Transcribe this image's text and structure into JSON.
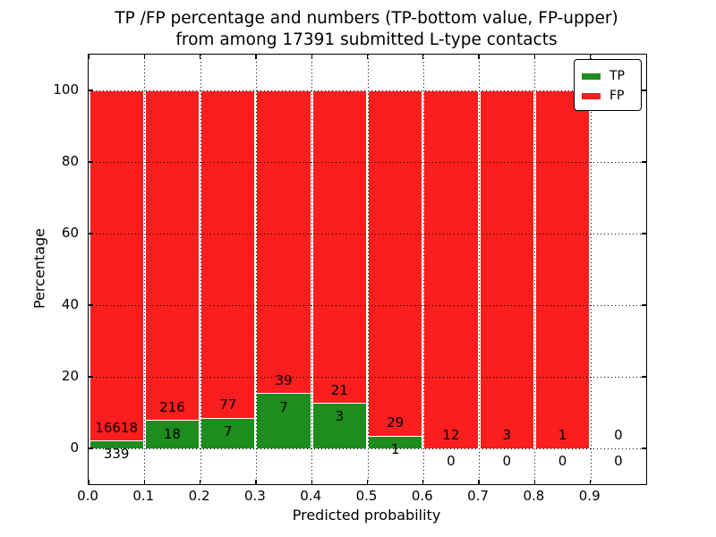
{
  "figure": {
    "title_line1": "TP /FP percentage and numbers (TP-bottom value, FP-upper)",
    "title_line2": "from among 17391 submitted L-type contacts"
  },
  "axes": {
    "xlabel": "Predicted probability",
    "ylabel": "Percentage",
    "xticks": [
      "0.0",
      "0.1",
      "0.2",
      "0.3",
      "0.4",
      "0.5",
      "0.6",
      "0.7",
      "0.8",
      "0.9"
    ],
    "yticks": [
      0,
      20,
      40,
      60,
      80,
      100
    ],
    "xlim": [
      0.0,
      1.0
    ],
    "ylim": [
      -10,
      110
    ],
    "grid_style": "dotted",
    "frame_color": "#000000"
  },
  "legend": {
    "position": "upper right",
    "entries": [
      {
        "label": "TP",
        "color": "#1e8c1e"
      },
      {
        "label": "FP",
        "color": "#fa1e1e"
      }
    ]
  },
  "chart_data": {
    "type": "bar",
    "mode": "stacked-100-percent",
    "title": "TP /FP percentage and numbers (TP-bottom value, FP-upper) from among 17391 submitted L-type contacts",
    "xlabel": "Predicted probability",
    "ylabel": "Percentage",
    "bin_width": 0.1,
    "bin_starts": [
      0.0,
      0.1,
      0.2,
      0.3,
      0.4,
      0.5,
      0.6,
      0.7,
      0.8,
      0.9
    ],
    "series": [
      {
        "name": "TP",
        "color": "#1e8c1e",
        "counts": [
          339,
          18,
          7,
          7,
          3,
          1,
          0,
          0,
          0,
          0
        ]
      },
      {
        "name": "FP",
        "color": "#fa1e1e",
        "counts": [
          16618,
          216,
          77,
          39,
          21,
          29,
          12,
          3,
          1,
          0
        ]
      }
    ],
    "tp_percent_of_bin": [
      2.0,
      7.7,
      8.3,
      15.2,
      12.5,
      3.3,
      0.0,
      0.0,
      0.0,
      null
    ],
    "total_contacts": 17391,
    "label_rule": "FP count printed above green-bar top, TP count printed below green-bar top"
  }
}
